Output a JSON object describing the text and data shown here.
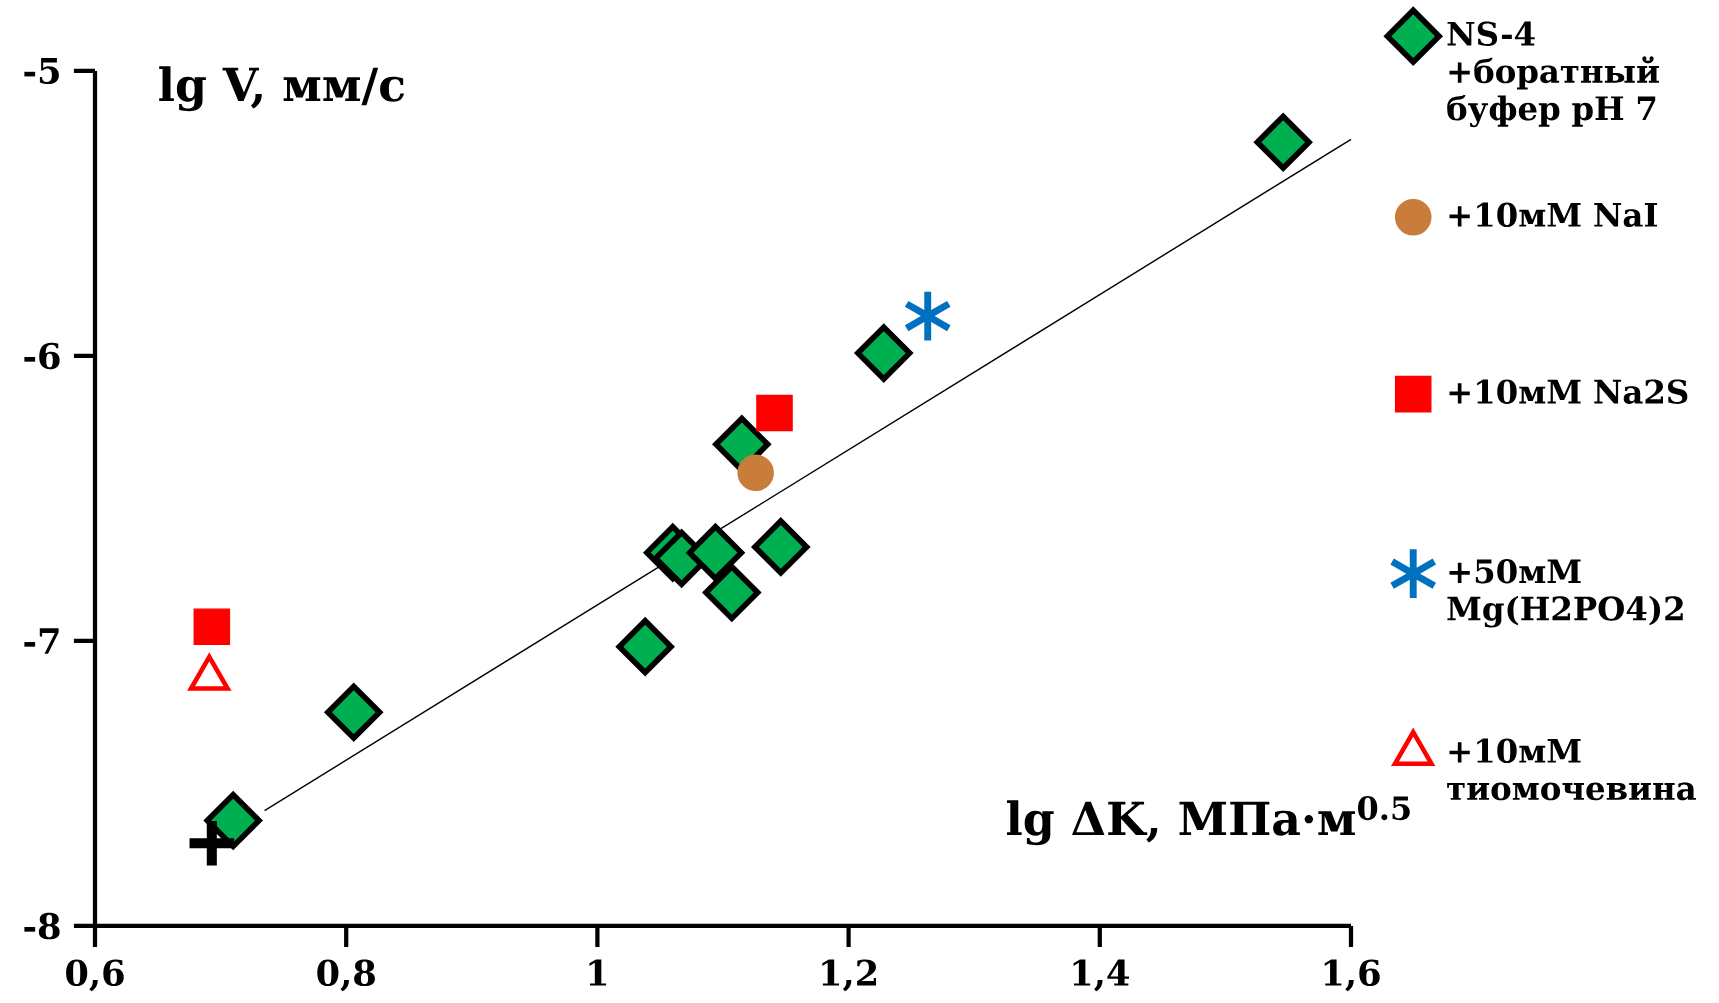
{
  "chart_data": {
    "type": "scatter",
    "xlabel": "lg ΔK, МПа·м$^{0.5}$",
    "ylabel": "lg V, мм/с",
    "xlim": [
      0.6,
      1.6
    ],
    "ylim": [
      -8,
      -5
    ],
    "xticks": [
      {
        "value": 0.6,
        "label": "0,6"
      },
      {
        "value": 0.8,
        "label": "0,8"
      },
      {
        "value": 1,
        "label": "1"
      },
      {
        "value": 1.2,
        "label": "1,2"
      },
      {
        "value": 1.4,
        "label": "1,4"
      },
      {
        "value": 1.6,
        "label": "1,6"
      }
    ],
    "yticks": [
      -8,
      -7,
      -6,
      -5
    ],
    "legend": "right",
    "grid": false,
    "series": [
      {
        "name": "NS-4 +боратный буфер pH 7",
        "color": "#00b050",
        "marker": "diamond",
        "x": [
          1.546,
          1.228,
          1.115,
          1.06,
          1.067,
          1.094,
          1.146,
          1.107,
          1.038,
          0.806,
          0.71
        ],
        "values": [
          -5.25,
          -5.99,
          -6.31,
          -6.69,
          -6.71,
          -6.69,
          -6.67,
          -6.83,
          -7.02,
          -7.25,
          -7.63
        ]
      },
      {
        "name": "+10мМ NaI",
        "color": "#c87d3a",
        "marker": "circle",
        "x": [
          1.126
        ],
        "values": [
          -6.41
        ]
      },
      {
        "name": "+10мМ Na2S",
        "color": "#ff0000",
        "marker": "square",
        "x": [
          1.141,
          0.693
        ],
        "values": [
          -6.2,
          -6.95
        ]
      },
      {
        "name": "+50мМ Mg(H2PO4)2",
        "color": "#0070c0",
        "marker": "cross",
        "x": [
          1.263
        ],
        "values": [
          -5.86
        ]
      },
      {
        "name": "+10мМ тиомочевина",
        "color": "#ff0000",
        "marker": "triangle",
        "x": [
          0.691
        ],
        "values": [
          -7.13
        ]
      },
      {
        "color": "#000000",
        "x": [
          0.693
        ],
        "values": [
          -7.71
        ]
      },
      {
        "type": "line",
        "color": "#000000",
        "marker": "none",
        "x": [
          0.735,
          1.6
        ],
        "values": [
          -7.595,
          -5.24
        ]
      }
    ]
  }
}
